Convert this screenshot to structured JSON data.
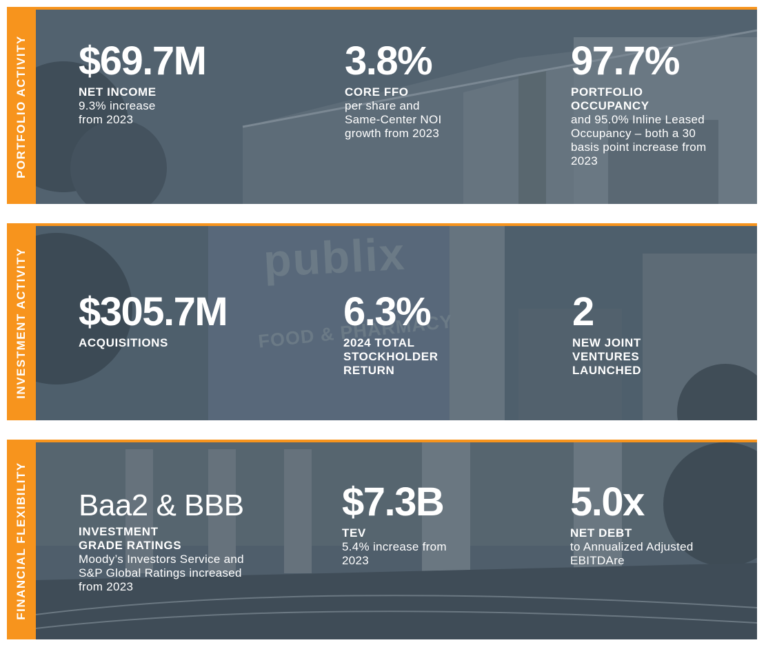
{
  "sections": [
    {
      "title": "PORTFOLIO ACTIVITY",
      "stats": [
        {
          "value": "$69.7M",
          "label": "NET INCOME",
          "description": "9.3% increase from 2023"
        },
        {
          "value": "3.8%",
          "label": "CORE FFO",
          "description": "per share and Same-Center NOI growth from 2023"
        },
        {
          "value": "97.7%",
          "label": "PORTFOLIO OCCUPANCY",
          "description": "and 95.0% Inline Leased Occupancy – both a 30 basis point increase from 2023"
        }
      ]
    },
    {
      "title": "INVESTMENT ACTIVITY",
      "stats": [
        {
          "value": "$305.7M",
          "label": "ACQUISITIONS",
          "description": ""
        },
        {
          "value": "6.3%",
          "label": "2024 TOTAL STOCKHOLDER RETURN",
          "description": ""
        },
        {
          "value": "2",
          "label": "NEW JOINT VENTURES LAUNCHED",
          "description": ""
        }
      ],
      "background_sign": {
        "line1": "publix",
        "line2": "FOOD & PHARMACY"
      }
    },
    {
      "title": "FINANCIAL FLEXIBILITY",
      "stats": [
        {
          "value": "Baa2 & BBB",
          "label": "INVESTMENT GRADE RATINGS",
          "description": "Moody’s Investors Service and S&P Global Ratings increased from 2023"
        },
        {
          "value": "$7.3B",
          "label": "TEV",
          "description": "5.4% increase from 2023"
        },
        {
          "value": "5.0x",
          "label": "NET DEBT",
          "description": "to Annualized Adjusted EBITDAre"
        }
      ]
    }
  ],
  "colors": {
    "accent": "#f7941d",
    "overlay": "#4d5e6d",
    "text": "#ffffff"
  }
}
